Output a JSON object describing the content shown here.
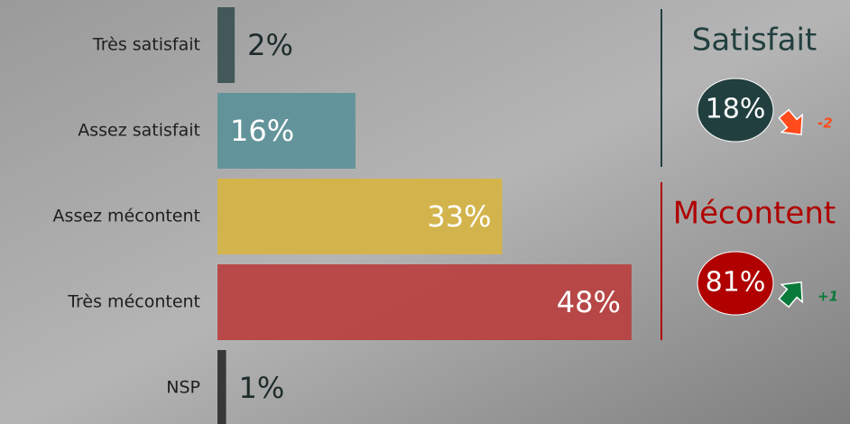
{
  "chart_data": {
    "type": "bar",
    "categories": [
      "Très satisfait",
      "Assez satisfait",
      "Assez mécontent",
      "Très mécontent",
      "NSP"
    ],
    "values": [
      2,
      16,
      33,
      48,
      1
    ],
    "value_labels": [
      "2%",
      "16%",
      "33%",
      "48%",
      "1%"
    ],
    "colors": [
      "#3b5252",
      "#5c9199",
      "#d6b443",
      "#b8403f",
      "#2e2e2e"
    ],
    "summary": [
      {
        "label": "Satisfait",
        "value": 18,
        "value_label": "18%",
        "change": -2,
        "color": "#223f3f",
        "change_color": "#ff4a1c"
      },
      {
        "label": "Mécontent",
        "value": 81,
        "value_label": "81%",
        "change": 1,
        "change_label": "+1",
        "color": "#b00000",
        "change_color": "#0a7a3a"
      }
    ]
  }
}
